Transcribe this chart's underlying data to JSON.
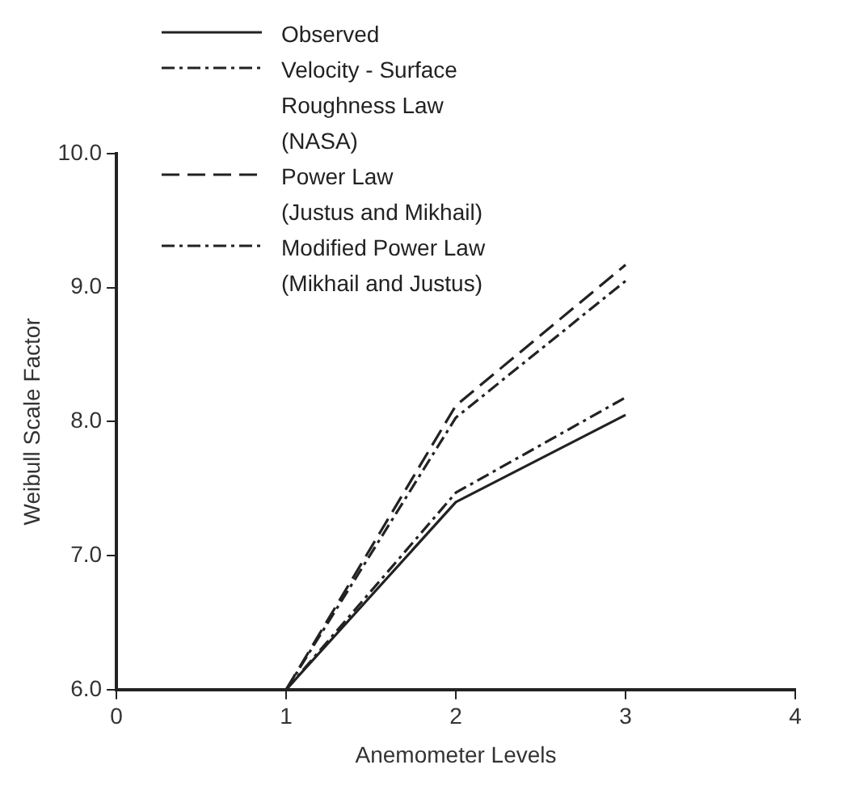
{
  "chart_data": {
    "type": "line",
    "xlabel": "Anemometer Levels",
    "ylabel": "Weibull Scale Factor",
    "x": [
      1,
      2,
      3
    ],
    "xlim": [
      0,
      4
    ],
    "xticks": [
      0,
      1,
      2,
      3,
      4
    ],
    "ylim": [
      6,
      10
    ],
    "yticks": [
      {
        "value": 6,
        "label": "6.0"
      },
      {
        "value": 7,
        "label": "7.0"
      },
      {
        "value": 8,
        "label": "8.0"
      },
      {
        "value": 9,
        "label": "9.0"
      },
      {
        "value": 10,
        "label": "10.0"
      }
    ],
    "legend": "top left",
    "marker": "none",
    "series": [
      {
        "name": "Observed",
        "color": "#222222",
        "line_style": "solid",
        "values": [
          6.0,
          7.4,
          8.05
        ]
      },
      {
        "name": "Velocity - Surface\nRoughness Law\n(NASA)",
        "color": "#222222",
        "line_style": "dotted",
        "values": [
          6.0,
          8.03,
          9.05
        ]
      },
      {
        "name": "Power Law\n(Justus and Mikhail)",
        "color": "#222222",
        "line_style": "dashed",
        "values": [
          6.0,
          8.12,
          9.17
        ]
      },
      {
        "name": "Modified Power Law\n(Mikhail and Justus)",
        "color": "#222222",
        "line_style": "dotted",
        "values": [
          6.0,
          7.47,
          8.18
        ]
      }
    ]
  }
}
